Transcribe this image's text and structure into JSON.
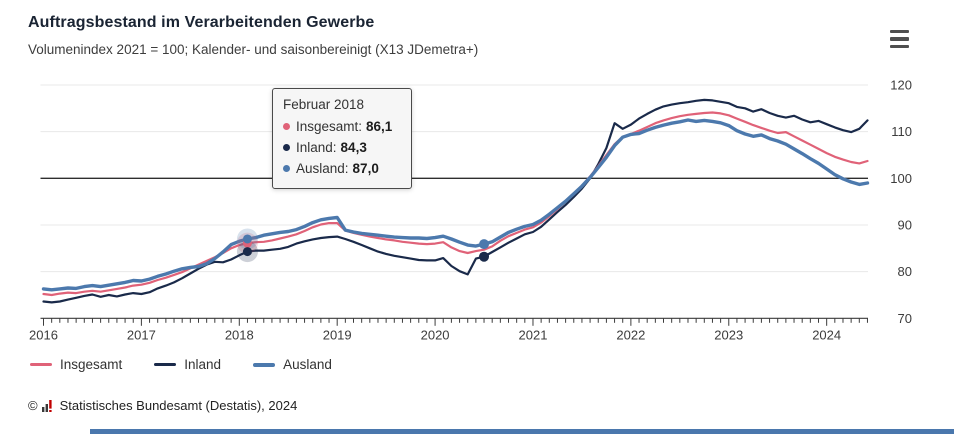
{
  "header": {
    "title": "Auftragsbestand im Verarbeitenden Gewerbe",
    "subtitle": "Volumenindex 2021 = 100; Kalender- und saisonbereinigt (X13 JDemetra+)",
    "menu_icon": "hamburger-icon"
  },
  "tooltip": {
    "title": "Februar 2018",
    "rows": [
      {
        "label": "Insgesamt:",
        "value": "86,1",
        "color": "#e06278"
      },
      {
        "label": "Inland:",
        "value": "84,3",
        "color": "#1a2a4a"
      },
      {
        "label": "Ausland:",
        "value": "87,0",
        "color": "#4c79ad"
      }
    ]
  },
  "legend": [
    {
      "label": "Insgesamt",
      "color": "#e06278"
    },
    {
      "label": "Inland",
      "color": "#1a2a4a"
    },
    {
      "label": "Ausland",
      "color": "#4c79ad"
    }
  ],
  "footer": {
    "copyright": "©",
    "source": "Statistisches Bundesamt (Destatis), 2024"
  },
  "chart_data": {
    "type": "line",
    "title": "Auftragsbestand im Verarbeitenden Gewerbe",
    "subtitle": "Volumenindex 2021 = 100; Kalender- und saisonbereinigt (X13 JDemetra+)",
    "x_start": "2016-01",
    "x_end": "2024-06",
    "x_step": "monthly",
    "x_tick_labels": [
      "2016",
      "2017",
      "2018",
      "2019",
      "2020",
      "2021",
      "2022",
      "2023",
      "2024"
    ],
    "xlabel": "",
    "ylabel": "",
    "ylim": [
      70,
      120
    ],
    "yticks": [
      70,
      80,
      90,
      100,
      110,
      120
    ],
    "reference_line": 100,
    "grid": "horizontal-light",
    "legend_position": "bottom-left",
    "series": [
      {
        "name": "Insgesamt",
        "color": "#e06278",
        "width": 2.2,
        "values": [
          75.2,
          75.0,
          75.3,
          75.5,
          75.4,
          75.7,
          75.9,
          75.7,
          76.0,
          76.3,
          76.6,
          77.0,
          77.2,
          77.6,
          78.2,
          78.7,
          79.3,
          79.9,
          80.7,
          81.5,
          82.3,
          83.1,
          84.0,
          85.0,
          85.7,
          86.1,
          86.3,
          86.4,
          86.7,
          87.1,
          87.5,
          88.0,
          88.7,
          89.5,
          90.1,
          90.4,
          90.4,
          88.8,
          88.3,
          87.9,
          87.5,
          87.2,
          86.9,
          86.7,
          86.4,
          86.2,
          86.0,
          85.9,
          86.0,
          86.3,
          85.2,
          84.4,
          84.0,
          84.4,
          84.7,
          85.4,
          86.6,
          87.6,
          88.3,
          89.0,
          89.5,
          90.5,
          91.9,
          93.4,
          95.0,
          96.7,
          98.4,
          100.4,
          102.6,
          105.0,
          107.3,
          108.9,
          109.5,
          110.2,
          111.0,
          111.8,
          112.4,
          112.9,
          113.3,
          113.6,
          113.8,
          114.0,
          114.1,
          113.9,
          113.5,
          112.8,
          112.1,
          111.4,
          110.8,
          110.2,
          109.7,
          109.9,
          109.0,
          108.1,
          107.2,
          106.3,
          105.4,
          104.6,
          104.0,
          103.5,
          103.2,
          103.7
        ]
      },
      {
        "name": "Inland",
        "color": "#1a2a4a",
        "width": 2.2,
        "values": [
          73.6,
          73.4,
          73.6,
          74.0,
          74.4,
          74.8,
          75.1,
          74.6,
          75.0,
          74.7,
          75.1,
          75.4,
          75.2,
          75.6,
          76.4,
          77.0,
          77.7,
          78.6,
          79.6,
          80.6,
          81.5,
          82.1,
          82.0,
          82.6,
          83.5,
          84.3,
          84.5,
          84.5,
          84.7,
          84.9,
          85.3,
          86.0,
          86.5,
          86.9,
          87.2,
          87.4,
          87.5,
          87.0,
          86.4,
          85.7,
          85.0,
          84.3,
          83.8,
          83.4,
          83.1,
          82.8,
          82.5,
          82.4,
          82.4,
          82.9,
          81.2,
          80.1,
          79.4,
          82.8,
          83.2,
          84.2,
          85.2,
          86.2,
          87.1,
          88.0,
          88.5,
          89.6,
          91.2,
          92.8,
          94.3,
          96.0,
          97.8,
          100.0,
          103.0,
          106.5,
          111.8,
          110.6,
          111.5,
          112.8,
          113.8,
          114.7,
          115.4,
          115.8,
          116.1,
          116.3,
          116.6,
          116.8,
          116.7,
          116.4,
          116.1,
          115.3,
          115.0,
          114.3,
          114.8,
          114.0,
          113.4,
          113.0,
          113.4,
          112.6,
          112.0,
          112.3,
          111.6,
          110.9,
          110.3,
          109.9,
          110.6,
          112.4
        ]
      },
      {
        "name": "Ausland",
        "color": "#4c79ad",
        "width": 3.4,
        "values": [
          76.3,
          76.1,
          76.3,
          76.5,
          76.4,
          76.8,
          77.0,
          76.8,
          77.1,
          77.4,
          77.7,
          78.1,
          78.0,
          78.4,
          79.0,
          79.5,
          80.1,
          80.6,
          80.9,
          81.1,
          81.7,
          82.8,
          84.2,
          85.8,
          86.5,
          87.0,
          87.3,
          87.8,
          88.1,
          88.4,
          88.6,
          89.0,
          89.7,
          90.5,
          91.1,
          91.4,
          91.6,
          88.9,
          88.5,
          88.2,
          88.0,
          87.8,
          87.6,
          87.4,
          87.3,
          87.2,
          87.2,
          87.1,
          87.3,
          87.6,
          87.0,
          86.3,
          85.7,
          85.5,
          85.9,
          86.4,
          87.4,
          88.4,
          89.1,
          89.7,
          90.1,
          91.0,
          92.3,
          93.7,
          95.1,
          96.7,
          98.3,
          100.2,
          102.3,
          104.5,
          107.0,
          108.8,
          109.4,
          109.6,
          110.3,
          110.9,
          111.4,
          111.8,
          112.1,
          112.5,
          112.2,
          112.4,
          112.2,
          111.9,
          111.3,
          110.2,
          109.5,
          109.0,
          109.3,
          108.5,
          108.0,
          107.3,
          106.3,
          105.3,
          104.2,
          103.2,
          102.0,
          100.8,
          99.9,
          99.2,
          98.7,
          99.0
        ]
      }
    ],
    "highlight": {
      "label": "Februar 2018",
      "month_index": 25,
      "points": [
        {
          "series": "Insgesamt",
          "value": 86.1
        },
        {
          "series": "Inland",
          "value": 84.3
        },
        {
          "series": "Ausland",
          "value": 87.0
        }
      ]
    },
    "markers": [
      {
        "series": "Ausland",
        "month_index": 54,
        "value": 85.9
      },
      {
        "series": "Inland",
        "month_index": 54,
        "value": 83.2
      }
    ]
  }
}
